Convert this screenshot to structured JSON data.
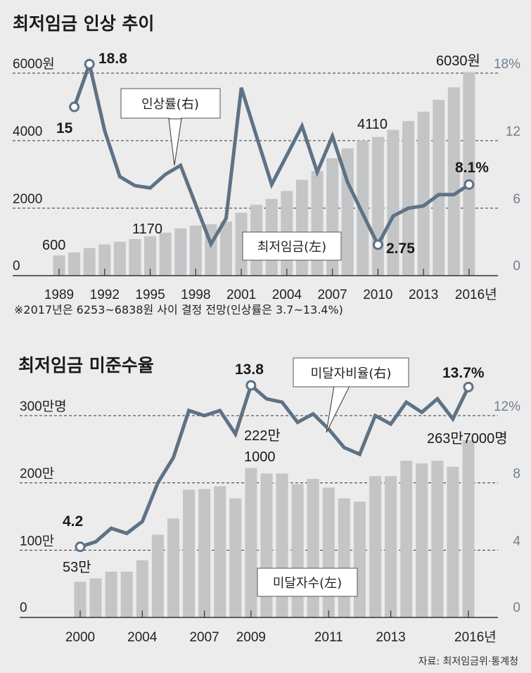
{
  "colors": {
    "bar": "#c4c5c7",
    "line": "#5e7285",
    "right_axis": "#6f7f8f",
    "background": "#ececec"
  },
  "chart_data": [
    {
      "type": "bar+line",
      "title": "최저임금 인상 추이",
      "left_axis": {
        "ticks": [
          "0",
          "2000",
          "4000",
          "6000원"
        ],
        "values": [
          0,
          2000,
          4000,
          6000
        ],
        "ylim": [
          0,
          6000
        ]
      },
      "right_axis": {
        "ticks": [
          "0",
          "6",
          "12",
          "18%"
        ],
        "values": [
          0,
          6,
          12,
          18
        ],
        "ylim": [
          0,
          18
        ]
      },
      "x_ticks": [
        "1989",
        "1992",
        "1995",
        "1998",
        "2001",
        "2004",
        "2007",
        "2010",
        "2013",
        "2016년"
      ],
      "x_tick_index": [
        0,
        3,
        6,
        9,
        12,
        15,
        18,
        21,
        24,
        27
      ],
      "bar_series": {
        "name": "최저임금(左)",
        "values": [
          600,
          690,
          820,
          925,
          1005,
          1085,
          1170,
          1275,
          1400,
          1485,
          1525,
          1600,
          1865,
          2100,
          2275,
          2510,
          2840,
          3100,
          3480,
          3770,
          4000,
          4110,
          4320,
          4580,
          4860,
          5210,
          5580,
          6030
        ]
      },
      "line_series": {
        "name": "인상률(右)",
        "start_index": 1,
        "values": [
          15,
          18.8,
          12.9,
          8.8,
          8.0,
          7.8,
          9.0,
          9.8,
          6.3,
          2.8,
          5.1,
          16.7,
          12.4,
          8.1,
          10.7,
          13.3,
          9.2,
          12.4,
          8.3,
          5.5,
          2.75,
          5.3,
          6.0,
          6.2,
          7.2,
          7.2,
          8.1
        ]
      },
      "annotations": {
        "bar_first": "600",
        "bar_1995": "1170",
        "bar_2010": "4110",
        "bar_last": "6030원",
        "line_first": "15",
        "line_max": "18.8",
        "line_min": "2.75",
        "line_last": "8.1%"
      },
      "note": "※2017년은 6253~6838원 사이 결정 전망(인상률은 3.7~13.4%)"
    },
    {
      "type": "bar+line",
      "title": "최저임금 미준수율",
      "left_axis": {
        "ticks": [
          "0",
          "100만",
          "200만",
          "300만명"
        ],
        "values": [
          0,
          100,
          200,
          300
        ],
        "ylim": [
          0,
          300
        ],
        "unit": "만명"
      },
      "right_axis": {
        "ticks": [
          "0",
          "4",
          "8",
          "12%"
        ],
        "values": [
          0,
          4,
          8,
          12
        ],
        "ylim": [
          0,
          12
        ]
      },
      "x_ticks": [
        "2000",
        "2004",
        "2007",
        "2009",
        "2011",
        "2013",
        "2016년"
      ],
      "x_tick_index": [
        0,
        4,
        8,
        11,
        16,
        20,
        25
      ],
      "bar_series": {
        "name": "미달자수(左)",
        "values": [
          53,
          58,
          68,
          68,
          85,
          123,
          147,
          190,
          191,
          195,
          177,
          222.1,
          214,
          214,
          198,
          206,
          193,
          177,
          172,
          210,
          210,
          233,
          229,
          233,
          224,
          263.7
        ]
      },
      "line_series": {
        "name": "미달자비율(右)",
        "start_index": 0,
        "values": [
          4.2,
          4.5,
          5.3,
          5.0,
          5.7,
          8.0,
          9.5,
          12.3,
          12.0,
          12.3,
          10.9,
          13.8,
          13.0,
          12.8,
          11.6,
          12.1,
          11.2,
          10.1,
          9.7,
          12.0,
          11.5,
          12.8,
          12.2,
          13.0,
          11.8,
          13.7
        ]
      },
      "annotations": {
        "bar_first": "53만",
        "bar_2009_line1": "222만",
        "bar_2009_line2": "1000",
        "bar_last": "263만7000명",
        "line_first": "4.2",
        "line_max": "13.8",
        "line_last": "13.7%"
      }
    }
  ],
  "source": "자료: 최저임금위·통계청"
}
